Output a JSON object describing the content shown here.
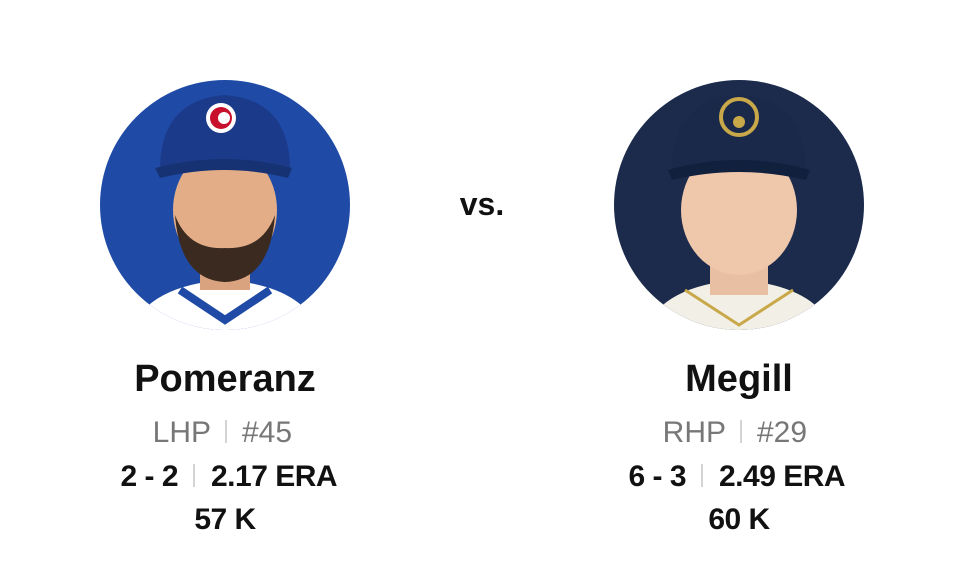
{
  "matchup": {
    "separator": "vs.",
    "pitchers": [
      {
        "name": "Pomeranz",
        "position": "LHP",
        "number": "#45",
        "record": "2 - 2",
        "era": "2.17 ERA",
        "strikeouts": "57 K"
      },
      {
        "name": "Megill",
        "position": "RHP",
        "number": "#29",
        "record": "6 - 3",
        "era": "2.49 ERA",
        "strikeouts": "60 K"
      }
    ]
  }
}
